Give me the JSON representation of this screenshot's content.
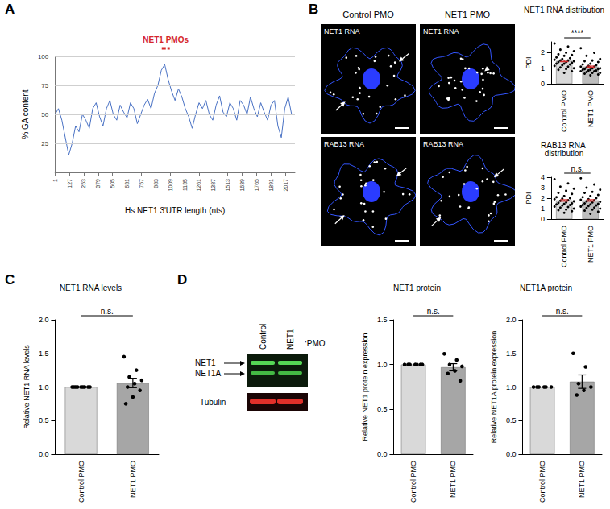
{
  "figure": {
    "panel_labels": [
      "A",
      "B",
      "C",
      "D"
    ],
    "micrographs": {
      "columns": [
        "Control PMO",
        "NET1 PMO"
      ],
      "rows": [
        "NET1 RNA",
        "RAB13 RNA"
      ]
    },
    "blot": {
      "lanes": [
        "Control",
        "NET1"
      ],
      "lane_suffix": ":PMO",
      "bands": [
        "NET1",
        "NET1A"
      ],
      "loading": "Tubulin"
    }
  },
  "chart_data": [
    {
      "type": "line",
      "xlabel": "Hs NET1 3'UTR length (nts)",
      "ylabel": "% GA content",
      "color": "#4a72c4",
      "x": [
        1,
        31,
        61,
        91,
        121,
        151,
        181,
        211,
        241,
        271,
        301,
        331,
        361,
        391,
        421,
        451,
        481,
        511,
        541,
        571,
        601,
        631,
        661,
        691,
        721,
        751,
        781,
        811,
        841,
        871,
        901,
        931,
        961,
        991,
        1021,
        1051,
        1081,
        1111,
        1141,
        1171,
        1201,
        1231,
        1261,
        1291,
        1321,
        1351,
        1381,
        1411,
        1441,
        1471,
        1501,
        1531,
        1561,
        1591,
        1621,
        1651,
        1681,
        1711,
        1741,
        1771,
        1801,
        1831,
        1861,
        1891,
        1921,
        1951,
        1981,
        2011,
        2041,
        2071
      ],
      "values": [
        50,
        55,
        45,
        30,
        15,
        25,
        40,
        35,
        50,
        45,
        38,
        55,
        60,
        48,
        40,
        55,
        62,
        50,
        45,
        58,
        52,
        47,
        60,
        55,
        42,
        50,
        58,
        63,
        55,
        68,
        75,
        88,
        93,
        80,
        70,
        62,
        72,
        65,
        55,
        48,
        38,
        50,
        60,
        55,
        62,
        50,
        45,
        58,
        66,
        52,
        48,
        60,
        55,
        45,
        62,
        58,
        50,
        65,
        55,
        48,
        60,
        52,
        45,
        58,
        62,
        40,
        30,
        55,
        65,
        50
      ],
      "xlim": [
        1,
        2100
      ],
      "xticks": [
        1,
        127,
        253,
        379,
        505,
        631,
        757,
        883,
        1009,
        1135,
        1261,
        1387,
        1513,
        1639,
        1765,
        1891,
        2017
      ],
      "ylim": [
        0,
        100
      ],
      "yticks": [
        25,
        50,
        75,
        100
      ],
      "grid": true,
      "annotations": [
        {
          "text": "NET1 PMOs",
          "x": [
            935,
            1005
          ],
          "color": "#d62728"
        }
      ]
    },
    {
      "type": "bar",
      "title": "NET1 RNA distribution",
      "ylabel": "PDI",
      "categories": [
        "Control PMO",
        "NET1 PMO"
      ],
      "values": [
        1.47,
        1.1
      ],
      "errors": [
        0.05,
        0.04
      ],
      "colors": [
        "#d9d9d9",
        "#bdbdbd"
      ],
      "points": [
        [
          2.6,
          2.4,
          2.2,
          2.1,
          2.0,
          1.9,
          1.85,
          1.8,
          1.7,
          1.65,
          1.6,
          1.55,
          1.5,
          1.5,
          1.45,
          1.4,
          1.4,
          1.35,
          1.3,
          1.3,
          1.25,
          1.2,
          1.15,
          1.1,
          1.05,
          1.0,
          0.95,
          0.9,
          0.8,
          0.7
        ],
        [
          2.3,
          2.0,
          1.8,
          1.6,
          1.5,
          1.45,
          1.4,
          1.3,
          1.25,
          1.2,
          1.15,
          1.1,
          1.1,
          1.05,
          1.0,
          1.0,
          0.95,
          0.95,
          0.9,
          0.9,
          0.85,
          0.85,
          0.8,
          0.8,
          0.75,
          0.7,
          0.7,
          0.65,
          0.6,
          0.55
        ]
      ],
      "ylim": [
        0,
        2.7
      ],
      "yticks": [
        0,
        1,
        2
      ],
      "significance": "****"
    },
    {
      "type": "bar",
      "title": "RAB13 RNA distribution",
      "ylabel": "PDI",
      "categories": [
        "Control PMO",
        "NET1 PMO"
      ],
      "values": [
        1.78,
        1.78
      ],
      "errors": [
        0.07,
        0.07
      ],
      "colors": [
        "#d9d9d9",
        "#bdbdbd"
      ],
      "points": [
        [
          3.8,
          3.4,
          3.1,
          2.9,
          2.7,
          2.5,
          2.4,
          2.2,
          2.1,
          2.0,
          1.95,
          1.9,
          1.8,
          1.75,
          1.7,
          1.6,
          1.55,
          1.5,
          1.45,
          1.4,
          1.35,
          1.3,
          1.2,
          1.15,
          1.1,
          1.0,
          0.9,
          0.85,
          0.75,
          0.6
        ],
        [
          3.9,
          3.3,
          3.0,
          2.8,
          2.6,
          2.5,
          2.3,
          2.2,
          2.1,
          2.0,
          1.9,
          1.85,
          1.8,
          1.7,
          1.65,
          1.6,
          1.5,
          1.45,
          1.4,
          1.35,
          1.3,
          1.25,
          1.2,
          1.1,
          1.05,
          1.0,
          0.9,
          0.8,
          0.7,
          0.5
        ]
      ],
      "ylim": [
        0,
        4
      ],
      "yticks": [
        0,
        1,
        2,
        3,
        4
      ],
      "significance": "n.s."
    },
    {
      "type": "bar",
      "title": "NET1 RNA levels",
      "ylabel": "Relative NET1 RNA levels",
      "categories": [
        "Control PMO",
        "NET1 PMO"
      ],
      "values": [
        1.0,
        1.06
      ],
      "errors": [
        0,
        0.07
      ],
      "colors": [
        "#d9d9d9",
        "#a6a6a6"
      ],
      "points": [
        [
          1,
          1,
          1,
          1,
          1,
          1,
          1,
          1,
          1
        ],
        [
          1.45,
          1.25,
          1.15,
          1.1,
          1.05,
          1.0,
          0.95,
          0.85,
          0.75
        ]
      ],
      "ylim": [
        0,
        2
      ],
      "yticks": [
        {
          "value": 0,
          "label": "0.0"
        },
        {
          "value": 0.5,
          "label": "0.5"
        },
        {
          "value": 1,
          "label": "1.0"
        },
        {
          "value": 1.5,
          "label": "1.5"
        },
        {
          "value": 2,
          "label": "2.0"
        }
      ],
      "significance": "n.s."
    },
    {
      "type": "bar",
      "title": "NET1 protein",
      "ylabel": "Relative NET1 protein expression",
      "categories": [
        "Control PMO",
        "NET1 PMO"
      ],
      "values": [
        1.0,
        0.97
      ],
      "errors": [
        0,
        0.04
      ],
      "colors": [
        "#d9d9d9",
        "#a6a6a6"
      ],
      "points": [
        [
          1,
          1,
          1,
          1,
          1,
          1,
          1
        ],
        [
          1.12,
          1.05,
          1.0,
          0.98,
          0.93,
          0.9,
          0.82
        ]
      ],
      "ylim": [
        0,
        1.5
      ],
      "yticks": [
        {
          "value": 0,
          "label": "0.0"
        },
        {
          "value": 0.5,
          "label": "0.5"
        },
        {
          "value": 1,
          "label": "1.0"
        },
        {
          "value": 1.5,
          "label": "1.5"
        }
      ],
      "significance": "n.s."
    },
    {
      "type": "bar",
      "title": "NET1A protein",
      "ylabel": "Relative NET1A protein expression",
      "categories": [
        "Control PMO",
        "NET1 PMO"
      ],
      "values": [
        1.0,
        1.08
      ],
      "errors": [
        0,
        0.1
      ],
      "colors": [
        "#d9d9d9",
        "#a6a6a6"
      ],
      "points": [
        [
          1,
          1,
          1,
          1,
          1,
          1
        ],
        [
          1.5,
          1.3,
          1.05,
          1.0,
          0.95,
          0.88
        ]
      ],
      "ylim": [
        0,
        2
      ],
      "yticks": [
        {
          "value": 0,
          "label": "0.0"
        },
        {
          "value": 0.5,
          "label": "0.5"
        },
        {
          "value": 1,
          "label": "1.0"
        },
        {
          "value": 1.5,
          "label": "1.5"
        },
        {
          "value": 2,
          "label": "2.0"
        }
      ],
      "significance": "n.s."
    }
  ]
}
